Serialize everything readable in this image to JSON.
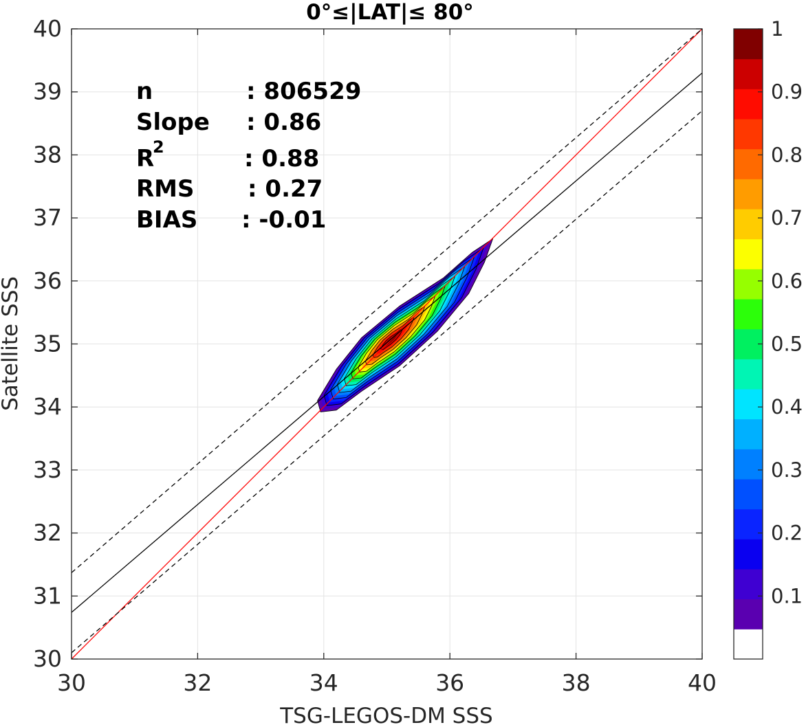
{
  "chart_data": {
    "type": "contour",
    "title": "0°≤|LAT|≤ 80°",
    "xlabel": "TSG-LEGOS-DM SSS",
    "ylabel": "Satellite SSS",
    "xlim": [
      30,
      40
    ],
    "ylim": [
      30,
      40
    ],
    "xticks": [
      30,
      32,
      34,
      36,
      38,
      40
    ],
    "yticks": [
      30,
      31,
      32,
      33,
      34,
      35,
      36,
      37,
      38,
      39,
      40
    ],
    "grid": true,
    "density": {
      "peak": [
        35.05,
        35.05
      ],
      "levels": [
        0.05,
        0.1,
        0.15,
        0.2,
        0.25,
        0.3,
        0.35,
        0.4,
        0.45,
        0.5,
        0.55,
        0.6,
        0.65,
        0.7,
        0.75,
        0.8,
        0.85,
        0.9,
        0.95
      ],
      "outer_boundary": [
        [
          33.9,
          34.1
        ],
        [
          34.2,
          34.6
        ],
        [
          34.6,
          35.1
        ],
        [
          35.2,
          35.6
        ],
        [
          35.9,
          36.05
        ],
        [
          36.35,
          36.45
        ],
        [
          36.68,
          36.67
        ],
        [
          36.55,
          36.3
        ],
        [
          36.3,
          35.8
        ],
        [
          35.8,
          35.2
        ],
        [
          35.2,
          34.65
        ],
        [
          34.6,
          34.25
        ],
        [
          34.2,
          33.95
        ],
        [
          33.95,
          33.92
        ]
      ],
      "band_colors": [
        "#ffffff",
        "#5a00b0",
        "#3f00d2",
        "#0a00f0",
        "#0a24ff",
        "#0050ff",
        "#0080ff",
        "#00b0ff",
        "#00e4ff",
        "#00f5b4",
        "#00f060",
        "#2cff0a",
        "#96ff00",
        "#fcff00",
        "#ffcc00",
        "#ff9c00",
        "#ff6a00",
        "#ff3800",
        "#ff0c00",
        "#cc0000",
        "#800000"
      ]
    },
    "lines": [
      {
        "name": "one-to-one",
        "style": "solid",
        "color": "#ff0000",
        "x": [
          30,
          40
        ],
        "y": [
          30,
          40
        ]
      },
      {
        "name": "regression",
        "style": "solid",
        "color": "#000000",
        "x": [
          30,
          40
        ],
        "y": [
          30.74,
          39.3
        ]
      },
      {
        "name": "upper-bound",
        "style": "dashed",
        "color": "#000000",
        "x": [
          30,
          40
        ],
        "y": [
          31.37,
          40.0
        ]
      },
      {
        "name": "lower-bound",
        "style": "dashed",
        "color": "#000000",
        "x": [
          30,
          40
        ],
        "y": [
          30.1,
          38.7
        ]
      }
    ],
    "colorbar": {
      "range": [
        0,
        1
      ],
      "tick_labels": [
        "0.1",
        "0.2",
        "0.3",
        "0.4",
        "0.5",
        "0.6",
        "0.7",
        "0.8",
        "0.9",
        "1"
      ],
      "ticks": [
        0.1,
        0.2,
        0.3,
        0.4,
        0.5,
        0.6,
        0.7,
        0.8,
        0.9,
        1.0
      ]
    },
    "stats": {
      "n_label": "n",
      "n_value": ": 806529",
      "slope_label": "Slope",
      "slope_value": ": 0.86",
      "r2_label": "R",
      "r2_sup": "2",
      "r2_value": ": 0.88",
      "rms_label": "RMS",
      "rms_value": ": 0.27",
      "bias_label": "BIAS",
      "bias_value": ": -0.01"
    }
  }
}
